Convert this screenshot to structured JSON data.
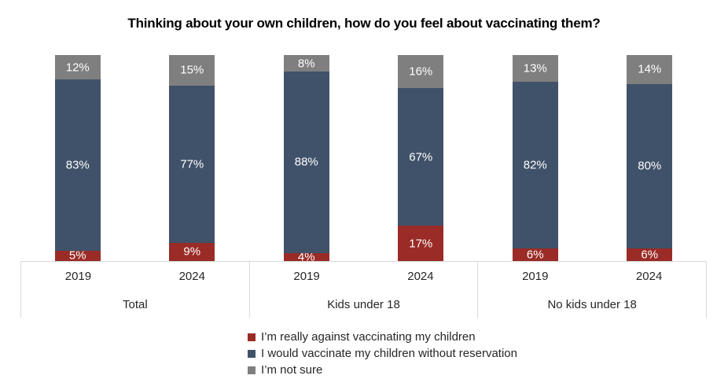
{
  "chart_data": {
    "type": "bar",
    "variant": "100%-stacked-column",
    "title": "Thinking about your own children, how do you feel about vaccinating them?",
    "value_suffix": "%",
    "ylim": [
      0,
      100
    ],
    "grid": false,
    "legend_position": "bottom-left",
    "groups": [
      {
        "label": "Total",
        "years": [
          "2019",
          "2024"
        ]
      },
      {
        "label": "Kids under 18",
        "years": [
          "2019",
          "2024"
        ]
      },
      {
        "label": "No kids under 18",
        "years": [
          "2019",
          "2024"
        ]
      }
    ],
    "bar_order": [
      "Total 2019",
      "Total 2024",
      "Kids under 18 2019",
      "Kids under 18 2024",
      "No kids under 18 2019",
      "No kids under 18 2024"
    ],
    "series": [
      {
        "name": "I’m really against vaccinating my children",
        "color": "#9a2b26",
        "values": [
          5,
          9,
          4,
          17,
          6,
          6
        ]
      },
      {
        "name": "I would vaccinate my children without reservation",
        "color": "#405269",
        "values": [
          83,
          77,
          88,
          67,
          82,
          80
        ]
      },
      {
        "name": "I’m not sure",
        "color": "#7f7f7f",
        "values": [
          12,
          15,
          8,
          16,
          13,
          14
        ]
      }
    ],
    "colors": {
      "axis_line": "#d9d9d9",
      "label_text": "#262626",
      "title_text": "#000000",
      "data_label_text": "#ffffff"
    }
  }
}
